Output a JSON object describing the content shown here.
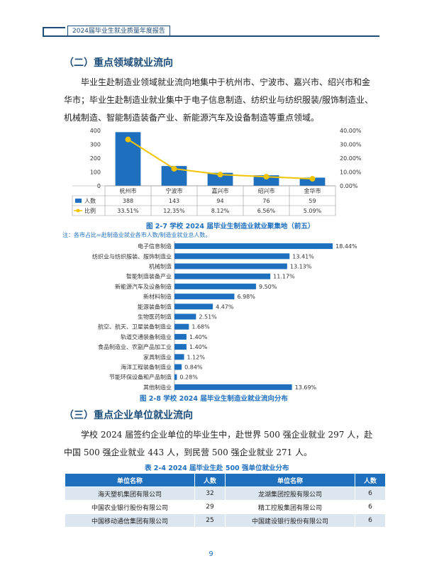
{
  "header": {
    "title": "2024届毕业生就业质量年度报告"
  },
  "section2": {
    "title": "（二）重点领域就业流向",
    "paragraph": "毕业生赴制造业领域就业流向地集中于杭州市、宁波市、嘉兴市、绍兴市和金华市；毕业生赴制造业就业集中于电子信息制造、纺织业与纺织服装/服饰制造业、机械制造、智能制造装备产业、新能源汽车及设备制造等重点领域。"
  },
  "chart_data": [
    {
      "type": "bar",
      "title": "图 2-7  学校 2024 届毕业生制造业就业聚集地（前五）",
      "categories": [
        "杭州市",
        "宁波市",
        "嘉兴市",
        "绍兴市",
        "金华市"
      ],
      "series": [
        {
          "name": "人数",
          "type": "bar",
          "values": [
            388,
            143,
            94,
            76,
            59
          ],
          "display": [
            "388",
            "143",
            "94",
            "76",
            "59"
          ],
          "color": "#1f6fbf"
        },
        {
          "name": "比例",
          "type": "line",
          "axis": "right",
          "values": [
            33.51,
            12.35,
            8.12,
            6.56,
            5.09
          ],
          "display": [
            "33.51%",
            "12.35%",
            "8.12%",
            "6.56%",
            "5.09%"
          ],
          "color": "#f2c300"
        }
      ],
      "ylim": [
        0,
        400
      ],
      "yticks": [
        "400",
        "300",
        "200",
        "100",
        "0"
      ],
      "y2lim": [
        0,
        40
      ],
      "y2ticks": [
        "40.00%",
        "30.00%",
        "20.00%",
        "10.00%",
        "0.00%"
      ],
      "legend": "data-table"
    },
    {
      "type": "bar",
      "orientation": "horizontal",
      "title": "图 2-8  学校 2024 届毕业生制造业就业流向分布",
      "categories": [
        "电子信息制造",
        "纺织业与纺织服装、服饰制造业",
        "机械制造",
        "智能制造装备产业",
        "新能源汽车及设备制造",
        "新材料制造",
        "能源装备制造",
        "生物医药制造",
        "航空、航天、卫星装备制造业",
        "轨道交通装备制造业",
        "食品制造业、农副产品加工业",
        "家具制造业",
        "海洋工程装备制造业",
        "节能环保设备和产品制造",
        "其他制造业"
      ],
      "values": [
        18.44,
        13.41,
        13.13,
        11.17,
        9.5,
        6.98,
        4.47,
        2.51,
        1.68,
        1.4,
        1.4,
        1.12,
        0.84,
        0.28,
        13.69
      ],
      "labels": [
        "18.44%",
        "13.41%",
        "13.13%",
        "11.17%",
        "9.50%",
        "6.98%",
        "4.47%",
        "2.51%",
        "1.68%",
        "1.40%",
        "1.40%",
        "1.12%",
        "0.84%",
        "0.28%",
        "13.69%"
      ],
      "xlim": [
        0,
        20
      ],
      "color": "#1f6fbf"
    }
  ],
  "note": "注：各市占比=赴制造业就业各市人数/制造业就业总人数。",
  "section3": {
    "title": "（三）重点企业单位就业流向",
    "paragraph": "学校 2024 届签约企业单位的毕业生中，赴世界 500 强企业就业 297 人，赴中国 500 强企业就业 443 人，到民营 500 强企业就业 271 人。"
  },
  "table": {
    "caption": "表 2-4  2024 届毕业生赴 500 强单位就业分布",
    "headers": [
      "单位名称",
      "人数",
      "单位名称",
      "人数"
    ],
    "rows": [
      [
        "海天塑机集团有限公司",
        "32",
        "龙湖集团控股有限公司",
        "6"
      ],
      [
        "中国农业银行股份有限公司",
        "29",
        "精工控股集团有限公司",
        "6"
      ],
      [
        "中国移动通信集团有限公司",
        "25",
        "中国建设银行股份有限公司",
        "6"
      ]
    ]
  },
  "page_number": "9"
}
